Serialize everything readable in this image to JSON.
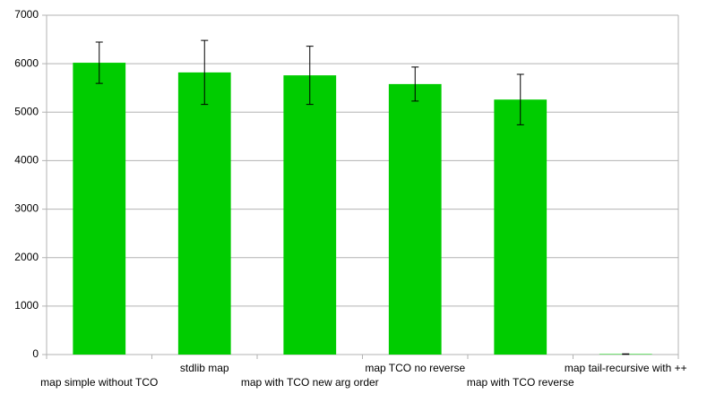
{
  "chart_data": {
    "type": "bar",
    "categories": [
      "map simple without TCO",
      "stdlib map",
      "map with TCO new arg order",
      "map TCO no reverse",
      "map with TCO reverse",
      "map tail-recursive with ++"
    ],
    "values": [
      6020,
      5820,
      5760,
      5580,
      5260,
      10
    ],
    "errors": [
      425,
      660,
      600,
      350,
      520,
      5
    ],
    "color": "#00cc00",
    "ylim": [
      0,
      7000
    ],
    "yticks": [
      0,
      1000,
      2000,
      3000,
      4000,
      5000,
      6000,
      7000
    ],
    "grid": true
  }
}
